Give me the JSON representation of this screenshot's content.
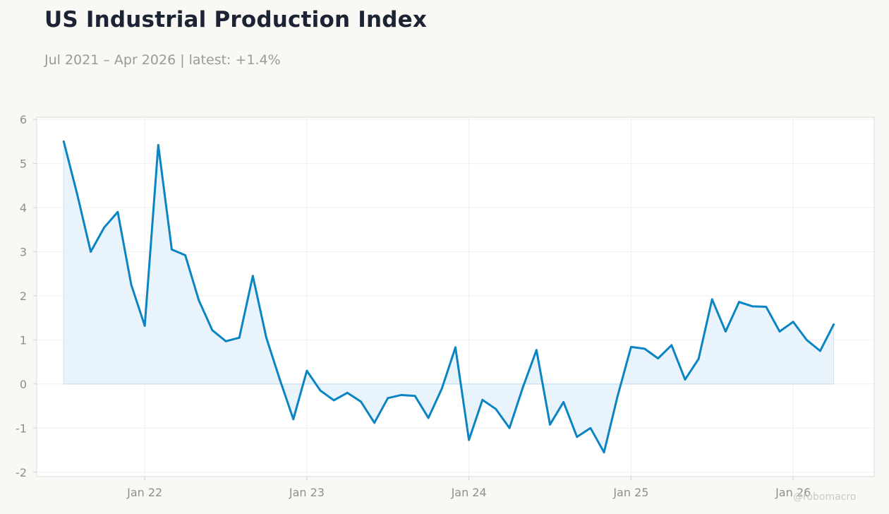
{
  "header": {
    "title": "US Industrial Production Index",
    "subtitle": "Jul 2021 – Apr 2026 | latest: +1.4%"
  },
  "watermark": "@robomacro",
  "colors": {
    "line": "#0a84c2",
    "fill": "#e5f1fa",
    "background": "#f9f8f5",
    "plot_background": "#ffffff",
    "grid": "#efefef",
    "text_muted": "#9a9a9a"
  },
  "chart_data": {
    "type": "area",
    "title": "US Industrial Production Index",
    "subtitle": "Jul 2021 – Apr 2026 | latest: +1.4%",
    "xlabel": "",
    "ylabel": "",
    "ylim": [
      -2.1,
      6.05
    ],
    "xlim": [
      "2021-05",
      "2026-07"
    ],
    "grid": true,
    "legend": "none",
    "yticks": [
      6,
      5,
      4,
      3,
      2,
      1,
      0,
      -1,
      -2
    ],
    "xticks": [
      {
        "date": "2022-01",
        "label": "Jan 22"
      },
      {
        "date": "2023-01",
        "label": "Jan 23"
      },
      {
        "date": "2024-01",
        "label": "Jan 24"
      },
      {
        "date": "2025-01",
        "label": "Jan 25"
      },
      {
        "date": "2026-01",
        "label": "Jan 26"
      }
    ],
    "x": [
      "2021-07",
      "2021-08",
      "2021-09",
      "2021-10",
      "2021-11",
      "2021-12",
      "2022-01",
      "2022-02",
      "2022-03",
      "2022-04",
      "2022-05",
      "2022-06",
      "2022-07",
      "2022-08",
      "2022-09",
      "2022-10",
      "2022-11",
      "2022-12",
      "2023-01",
      "2023-02",
      "2023-03",
      "2023-04",
      "2023-05",
      "2023-06",
      "2023-07",
      "2023-08",
      "2023-09",
      "2023-10",
      "2023-11",
      "2023-12",
      "2024-01",
      "2024-02",
      "2024-03",
      "2024-04",
      "2024-05",
      "2024-06",
      "2024-07",
      "2024-08",
      "2024-09",
      "2024-10",
      "2024-11",
      "2024-12",
      "2025-01",
      "2025-02",
      "2025-03",
      "2025-04",
      "2025-05",
      "2025-06",
      "2025-07",
      "2025-08",
      "2025-09",
      "2025-10",
      "2025-11",
      "2025-12",
      "2026-01",
      "2026-02",
      "2026-03",
      "2026-04"
    ],
    "values": [
      5.5,
      4.3,
      3.0,
      3.55,
      3.9,
      2.25,
      1.32,
      5.42,
      3.05,
      2.92,
      1.9,
      1.22,
      0.97,
      1.05,
      2.45,
      1.05,
      0.1,
      -0.8,
      0.3,
      -0.15,
      -0.37,
      -0.2,
      -0.4,
      -0.88,
      -0.32,
      -0.25,
      -0.27,
      -0.77,
      -0.1,
      0.83,
      -1.27,
      -0.36,
      -0.57,
      -1.0,
      -0.07,
      0.77,
      -0.92,
      -0.41,
      -1.2,
      -1.0,
      -1.55,
      -0.28,
      0.84,
      0.8,
      0.58,
      0.88,
      0.1,
      0.57,
      1.92,
      1.19,
      1.86,
      1.76,
      1.75,
      1.19,
      1.41,
      1.0,
      0.75,
      1.35
    ]
  }
}
